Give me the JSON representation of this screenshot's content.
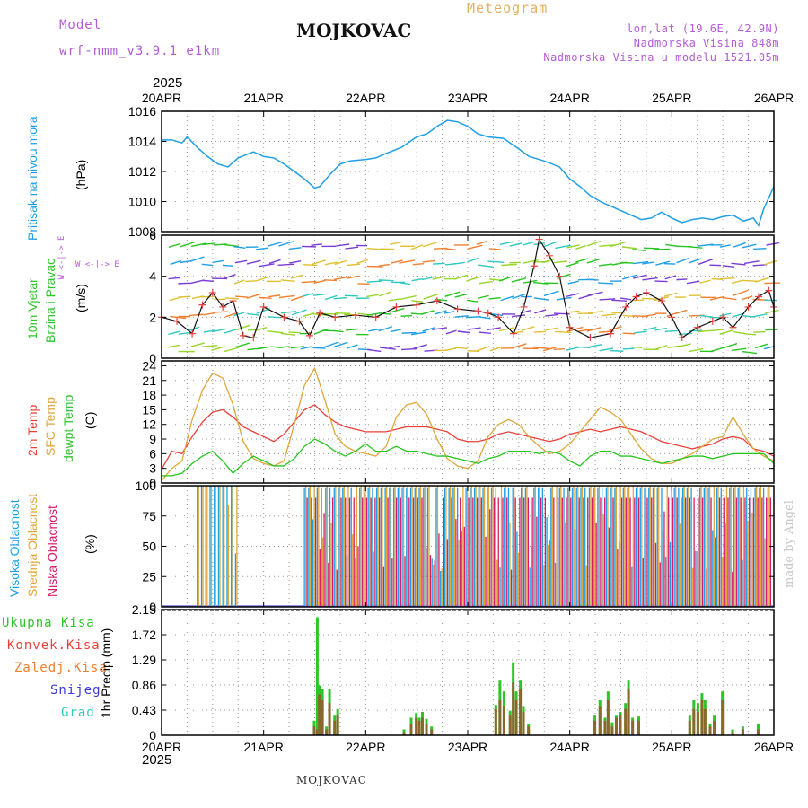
{
  "header": {
    "model_label": "Model",
    "model_name": "wrf-nmm_v3.9.1 e1km",
    "station_title": "MOJKOVAC",
    "meteogram_label": "Meteogram",
    "lonlat": "lon,lat (19.6E, 42.9N)",
    "elevation": "Nadmorska Visina 848m",
    "model_elevation": "Nadmorska Visina u modelu 1521.05m",
    "year": "2025"
  },
  "footer": {
    "station": "MOJKOVAC",
    "watermark": "made by Angel"
  },
  "colors": {
    "pressure": "#1e9fe6",
    "t2m": "#e8413b",
    "sfc": "#e0a63a",
    "dew": "#26c51e",
    "high_cloud": "#1e9fe6",
    "mid_cloud": "#e0a63a",
    "low_cloud": "#d81b6a",
    "total_precip": "#2ec52a",
    "conv_precip": "#e8413b",
    "freezing": "#f08030",
    "snow": "#3a3ad6",
    "hail": "#2ec9c0"
  },
  "panel_labels": {
    "pressure": [
      "Pritisak na nivou mora",
      "(hPa)"
    ],
    "wind": [
      "10m Vjetar",
      "Brzina i Pravac",
      "(m/s)"
    ],
    "wind_compass": [
      "N",
      "^",
      "W <-|-> E",
      "v",
      "S"
    ],
    "temp": [
      "2m Temp",
      "SFC Temp",
      "dewpt Temp",
      "(C)"
    ],
    "cloud": [
      "Visoka Oblacnost",
      "Srednja Oblacnost",
      "Niska Oblacnost",
      "(%)"
    ],
    "precip_legend": [
      "Ukupna Kisa",
      "Konvek.Kisa",
      "Zaledj.Kisa",
      "Snijeg",
      "Grad"
    ],
    "precip_axis": "1hr Precip (mm)"
  },
  "chart_data": [
    {
      "type": "line",
      "x_ticks": [
        "20APR",
        "21APR",
        "22APR",
        "23APR",
        "24APR",
        "25APR",
        "26APR"
      ],
      "ylabel": "(hPa)",
      "ylim": [
        1008,
        1016
      ],
      "yticks": [
        "1016",
        "1014",
        "1012",
        "1010",
        "1008"
      ],
      "series": [
        {
          "name": "Pritisak na nivou mora",
          "x": [
            0,
            0.1,
            0.2,
            0.25,
            0.35,
            0.45,
            0.55,
            0.65,
            0.75,
            0.9,
            1.0,
            1.1,
            1.2,
            1.3,
            1.4,
            1.5,
            1.55,
            1.65,
            1.75,
            1.85,
            2.0,
            2.1,
            2.2,
            2.35,
            2.5,
            2.6,
            2.7,
            2.8,
            2.9,
            3.0,
            3.1,
            3.2,
            3.35,
            3.5,
            3.6,
            3.75,
            3.9,
            4.0,
            4.1,
            4.2,
            4.3,
            4.4,
            4.5,
            4.6,
            4.7,
            4.8,
            4.9,
            5.0,
            5.1,
            5.2,
            5.3,
            5.4,
            5.5,
            5.6,
            5.7,
            5.8,
            5.85,
            5.9,
            6.0
          ],
          "y": [
            1014.1,
            1014.1,
            1013.9,
            1014.3,
            1013.6,
            1013.0,
            1012.5,
            1012.3,
            1012.9,
            1013.3,
            1013.0,
            1012.9,
            1012.5,
            1012.0,
            1011.5,
            1010.9,
            1011.0,
            1011.8,
            1012.5,
            1012.7,
            1012.8,
            1012.9,
            1013.2,
            1013.6,
            1014.3,
            1014.5,
            1015.0,
            1015.4,
            1015.3,
            1015.0,
            1014.5,
            1014.3,
            1014.2,
            1013.5,
            1013.0,
            1012.7,
            1012.3,
            1011.5,
            1011.0,
            1010.4,
            1010.0,
            1009.7,
            1009.4,
            1009.1,
            1008.8,
            1008.9,
            1009.3,
            1008.9,
            1008.6,
            1008.8,
            1008.9,
            1008.8,
            1009.0,
            1009.1,
            1008.7,
            1008.9,
            1008.4,
            1009.5,
            1011.0
          ]
        }
      ]
    },
    {
      "type": "scatter",
      "ylabel": "(m/s)",
      "ylim": [
        0,
        6
      ],
      "yticks": [
        "6",
        "4",
        "2",
        "0"
      ],
      "series": [
        {
          "name": "10m Vjetar",
          "x": [
            0,
            0.15,
            0.3,
            0.4,
            0.5,
            0.6,
            0.7,
            0.8,
            0.9,
            1.0,
            1.2,
            1.35,
            1.45,
            1.55,
            1.7,
            1.9,
            2.1,
            2.3,
            2.5,
            2.7,
            2.9,
            3.1,
            3.2,
            3.3,
            3.45,
            3.55,
            3.65,
            3.7,
            3.8,
            3.9,
            4.0,
            4.2,
            4.4,
            4.55,
            4.65,
            4.75,
            4.9,
            5.0,
            5.1,
            5.25,
            5.4,
            5.5,
            5.6,
            5.75,
            5.85,
            5.95,
            6.0
          ],
          "y": [
            2.0,
            1.8,
            1.2,
            2.6,
            3.2,
            2.5,
            2.8,
            1.1,
            1.0,
            2.5,
            2.0,
            1.8,
            1.1,
            2.2,
            2.0,
            2.1,
            2.0,
            2.5,
            2.6,
            2.8,
            2.4,
            2.3,
            2.2,
            2.0,
            1.2,
            2.5,
            4.5,
            5.8,
            5.0,
            4.0,
            1.5,
            1.0,
            1.2,
            2.5,
            3.0,
            3.2,
            2.8,
            2.0,
            1.0,
            1.5,
            1.8,
            2.0,
            1.5,
            2.5,
            3.0,
            3.3,
            2.5
          ]
        }
      ]
    },
    {
      "type": "line",
      "ylabel": "(C)",
      "ylim": [
        0,
        25
      ],
      "yticks": [
        "24",
        "21",
        "18",
        "15",
        "12",
        "9",
        "6",
        "3",
        "0"
      ],
      "x": [
        0,
        0.1,
        0.2,
        0.3,
        0.4,
        0.5,
        0.6,
        0.7,
        0.8,
        0.9,
        1.0,
        1.1,
        1.2,
        1.3,
        1.4,
        1.5,
        1.6,
        1.7,
        1.8,
        1.9,
        2.0,
        2.1,
        2.2,
        2.3,
        2.4,
        2.5,
        2.6,
        2.7,
        2.8,
        2.9,
        3.0,
        3.1,
        3.2,
        3.3,
        3.4,
        3.5,
        3.6,
        3.7,
        3.8,
        3.9,
        4.0,
        4.1,
        4.2,
        4.3,
        4.4,
        4.5,
        4.6,
        4.7,
        4.8,
        4.9,
        5.0,
        5.1,
        5.2,
        5.3,
        5.4,
        5.5,
        5.6,
        5.7,
        5.8,
        5.9,
        6.0
      ],
      "series": [
        {
          "name": "2m Temp",
          "values": [
            2.8,
            6.5,
            6.0,
            9.5,
            12.5,
            14.5,
            15.0,
            13.5,
            11.5,
            10.5,
            9.5,
            8.5,
            10.0,
            12.5,
            15.0,
            16.0,
            14.0,
            12.5,
            11.5,
            11.0,
            10.5,
            10.5,
            10.5,
            11.0,
            11.5,
            11.5,
            11.5,
            11.0,
            10.5,
            9.0,
            8.5,
            8.5,
            9.0,
            10.0,
            10.5,
            10.0,
            9.5,
            9.0,
            8.5,
            9.0,
            10.0,
            10.5,
            11.0,
            10.5,
            11.0,
            11.5,
            11.0,
            10.5,
            9.5,
            8.5,
            8.0,
            7.5,
            7.0,
            7.5,
            8.0,
            9.0,
            9.5,
            9.0,
            7.0,
            6.5,
            5.5
          ]
        },
        {
          "name": "SFC Temp",
          "values": [
            0.5,
            3.0,
            4.5,
            13.0,
            19.0,
            22.5,
            21.5,
            16.0,
            8.5,
            5.0,
            4.0,
            3.5,
            4.5,
            12.0,
            20.0,
            23.5,
            17.0,
            10.0,
            7.5,
            6.5,
            6.0,
            5.5,
            7.5,
            13.5,
            16.0,
            16.5,
            14.0,
            9.0,
            5.0,
            3.5,
            3.0,
            4.5,
            9.5,
            12.0,
            13.0,
            12.0,
            9.5,
            7.5,
            6.0,
            6.5,
            8.0,
            10.5,
            13.0,
            15.5,
            14.5,
            13.0,
            10.0,
            7.0,
            5.0,
            4.0,
            4.0,
            5.0,
            6.0,
            7.5,
            9.0,
            9.5,
            13.5,
            10.0,
            7.0,
            5.5,
            4.5
          ]
        },
        {
          "name": "dewpt Temp",
          "values": [
            1.5,
            1.5,
            2.0,
            4.0,
            5.5,
            6.5,
            4.5,
            2.0,
            4.0,
            5.5,
            4.5,
            3.5,
            3.5,
            5.0,
            7.5,
            9.0,
            8.0,
            6.5,
            5.5,
            6.5,
            8.0,
            6.5,
            6.5,
            7.5,
            6.5,
            6.5,
            6.0,
            5.5,
            5.5,
            5.0,
            4.5,
            4.0,
            5.0,
            5.5,
            6.5,
            6.5,
            6.5,
            6.0,
            6.5,
            6.0,
            4.5,
            3.5,
            5.5,
            6.5,
            6.5,
            5.5,
            5.5,
            5.0,
            4.5,
            4.0,
            4.5,
            5.0,
            5.5,
            5.5,
            5.0,
            5.5,
            6.0,
            6.0,
            6.0,
            6.0,
            4.0
          ]
        }
      ]
    },
    {
      "type": "bar",
      "ylabel": "(%)",
      "ylim": [
        0,
        100
      ],
      "yticks": [
        "100",
        "75",
        "50",
        "25",
        "0"
      ],
      "x_spans": [
        [
          0.35,
          0.75
        ],
        [
          1.4,
          5.95
        ]
      ],
      "series": [
        {
          "name": "Visoka Oblacnost",
          "values": [
            100,
            98
          ]
        },
        {
          "name": "Srednja Oblacnost",
          "values": [
            100,
            100
          ]
        },
        {
          "name": "Niska Oblacnost",
          "values": [
            0,
            90
          ]
        }
      ]
    },
    {
      "type": "bar",
      "ylabel": "1hr Precip (mm)",
      "ylim": [
        0,
        2.15
      ],
      "yticks": [
        "2.15",
        "1.72",
        "1.29",
        "0.86",
        "0.43",
        "0"
      ],
      "x": [
        1.5,
        1.53,
        1.55,
        1.58,
        1.62,
        1.65,
        1.7,
        1.73,
        2.38,
        2.45,
        2.5,
        2.53,
        2.56,
        2.6,
        2.65,
        3.28,
        3.32,
        3.36,
        3.42,
        3.45,
        3.48,
        3.52,
        3.55,
        3.6,
        4.25,
        4.3,
        4.35,
        4.38,
        4.42,
        4.46,
        4.5,
        4.55,
        4.58,
        4.62,
        4.68,
        5.18,
        5.22,
        5.26,
        5.3,
        5.33,
        5.38,
        5.42,
        5.5,
        5.6,
        5.7,
        5.85
      ],
      "series": [
        {
          "name": "Ukupna Kisa",
          "values": [
            0.25,
            2.02,
            0.85,
            0.8,
            0.15,
            0.8,
            0.35,
            0.45,
            0.1,
            0.3,
            0.38,
            0.3,
            0.4,
            0.28,
            0.15,
            0.52,
            0.95,
            0.75,
            0.42,
            1.25,
            0.75,
            0.95,
            0.5,
            0.2,
            0.35,
            0.6,
            0.3,
            0.75,
            0.22,
            0.35,
            0.4,
            0.55,
            0.95,
            0.3,
            0.32,
            0.35,
            0.6,
            0.55,
            0.72,
            0.6,
            0.2,
            0.35,
            0.75,
            0.1,
            0.15,
            0.2
          ]
        },
        {
          "name": "Konvek.Kisa",
          "values": [
            0.15,
            0.1,
            0.7,
            0.6,
            0.1,
            0.55,
            0.25,
            0.35,
            0.05,
            0.2,
            0.3,
            0.25,
            0.3,
            0.2,
            0.1,
            0.45,
            0.6,
            0.5,
            0.35,
            0.9,
            0.6,
            0.8,
            0.4,
            0.15,
            0.25,
            0.5,
            0.25,
            0.6,
            0.15,
            0.3,
            0.35,
            0.45,
            0.8,
            0.25,
            0.25,
            0.25,
            0.45,
            0.4,
            0.6,
            0.45,
            0.15,
            0.25,
            0.6,
            0.05,
            0.1,
            0.1
          ]
        }
      ]
    }
  ]
}
